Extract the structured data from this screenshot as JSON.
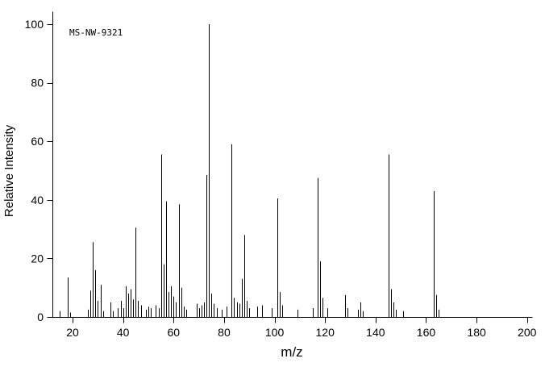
{
  "chart_data": {
    "type": "stick",
    "subtype": "mass-spectrum",
    "annotation": "MS-NW-9321",
    "xlabel": "m/z",
    "ylabel": "Relative Intensity",
    "xlim": [
      12,
      202
    ],
    "ylim": [
      0,
      100
    ],
    "xticks": [
      20,
      40,
      60,
      80,
      100,
      120,
      140,
      160,
      180,
      200
    ],
    "yticks": [
      0,
      20,
      40,
      60,
      80,
      100
    ],
    "grid": false,
    "line_color": "#000000",
    "background_color": "#ffffff",
    "peaks": [
      [
        15,
        2
      ],
      [
        18,
        13.5
      ],
      [
        19,
        1.5
      ],
      [
        26,
        2.5
      ],
      [
        27,
        9
      ],
      [
        28,
        25.5
      ],
      [
        29,
        16
      ],
      [
        30,
        5.5
      ],
      [
        31,
        11
      ],
      [
        32,
        2
      ],
      [
        35,
        5
      ],
      [
        36,
        2
      ],
      [
        38,
        3
      ],
      [
        39,
        5.5
      ],
      [
        40,
        3
      ],
      [
        41,
        10.5
      ],
      [
        42,
        8
      ],
      [
        43,
        9.5
      ],
      [
        44,
        6
      ],
      [
        45,
        30.5
      ],
      [
        46,
        5.5
      ],
      [
        47,
        4
      ],
      [
        49,
        2.5
      ],
      [
        50,
        3.5
      ],
      [
        51,
        3
      ],
      [
        53,
        4
      ],
      [
        54,
        3
      ],
      [
        55,
        55.5
      ],
      [
        56,
        18
      ],
      [
        57,
        39.5
      ],
      [
        58,
        8.5
      ],
      [
        59,
        10.5
      ],
      [
        60,
        7
      ],
      [
        61,
        5
      ],
      [
        62,
        38.5
      ],
      [
        63,
        10
      ],
      [
        64,
        3.5
      ],
      [
        65,
        2.5
      ],
      [
        69,
        4.5
      ],
      [
        70,
        3
      ],
      [
        71,
        4
      ],
      [
        72,
        5
      ],
      [
        73,
        48.5
      ],
      [
        74,
        100
      ],
      [
        75,
        8
      ],
      [
        76,
        4.5
      ],
      [
        77,
        3
      ],
      [
        79,
        2.5
      ],
      [
        81,
        3.5
      ],
      [
        83,
        59
      ],
      [
        84,
        6.5
      ],
      [
        85,
        5
      ],
      [
        86,
        4.5
      ],
      [
        87,
        13
      ],
      [
        88,
        28
      ],
      [
        89,
        5.5
      ],
      [
        90,
        3
      ],
      [
        93,
        3.5
      ],
      [
        95,
        4
      ],
      [
        99,
        3
      ],
      [
        101,
        40.5
      ],
      [
        102,
        8.5
      ],
      [
        103,
        4
      ],
      [
        109,
        2.5
      ],
      [
        115,
        3
      ],
      [
        117,
        47.5
      ],
      [
        118,
        19
      ],
      [
        119,
        6.5
      ],
      [
        121,
        3
      ],
      [
        128,
        7.5
      ],
      [
        129,
        3
      ],
      [
        133,
        2.5
      ],
      [
        134,
        5
      ],
      [
        135,
        2
      ],
      [
        145,
        55.5
      ],
      [
        146,
        9.5
      ],
      [
        147,
        5
      ],
      [
        148,
        2.5
      ],
      [
        151,
        2
      ],
      [
        163,
        43
      ],
      [
        164,
        7.5
      ],
      [
        165,
        2.5
      ]
    ]
  }
}
